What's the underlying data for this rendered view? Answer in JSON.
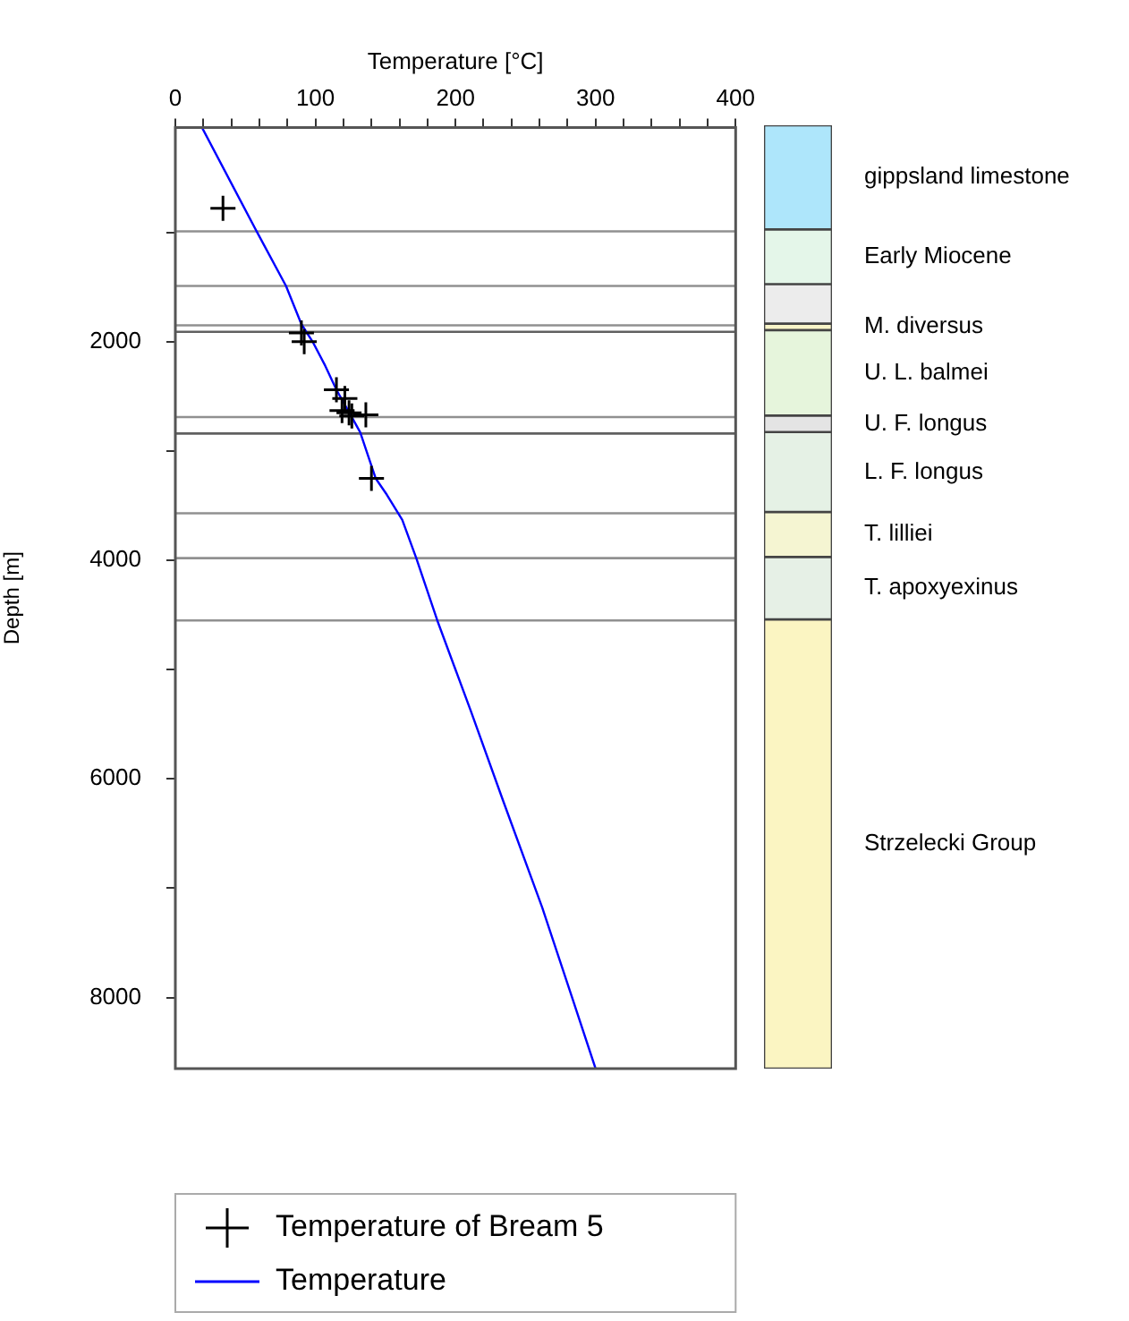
{
  "chart_data": [
    {
      "type": "line",
      "xlabel": "Temperature [°C]",
      "ylabel": "Depth [m]",
      "xlim": [
        0,
        400
      ],
      "ylim": [
        8650,
        40
      ],
      "xticks": [
        0,
        {
          "value": 20,
          "label": null
        },
        {
          "value": 40,
          "label": null
        },
        {
          "value": 60,
          "label": null
        },
        {
          "value": 80,
          "label": null
        },
        100,
        {
          "value": 120,
          "label": null
        },
        {
          "value": 140,
          "label": null
        },
        {
          "value": 160,
          "label": null
        },
        {
          "value": 180,
          "label": null
        },
        200,
        {
          "value": 220,
          "label": null
        },
        {
          "value": 240,
          "label": null
        },
        {
          "value": 260,
          "label": null
        },
        {
          "value": 280,
          "label": null
        },
        300,
        {
          "value": 320,
          "label": null
        },
        {
          "value": 340,
          "label": null
        },
        {
          "value": 360,
          "label": null
        },
        {
          "value": 380,
          "label": null
        },
        400
      ],
      "yticks": [
        {
          "value": 1000,
          "label": null
        },
        2000,
        {
          "value": 3000,
          "label": null
        },
        4000,
        {
          "value": 5000,
          "label": null
        },
        6000,
        {
          "value": 7000,
          "label": null
        },
        8000
      ],
      "legend": "bottom",
      "series": [
        {
          "name": "Temperature of Bream 5",
          "type": "scatter",
          "marker": "cross",
          "color": "#000000",
          "x": [
            34,
            90,
            92,
            115,
            121,
            119,
            124,
            126,
            136,
            140
          ],
          "values": [
            780,
            1920,
            2000,
            2440,
            2520,
            2630,
            2650,
            2680,
            2670,
            3250
          ]
        },
        {
          "name": "Temperature",
          "marker": "none",
          "color": "#0000ff",
          "x": [
            19,
            58,
            79,
            90,
            98,
            107,
            115,
            126,
            132,
            143,
            151,
            162,
            172,
            187,
            211,
            234,
            262,
            283,
            300
          ],
          "values": [
            40,
            990,
            1490,
            1840,
            2000,
            2220,
            2440,
            2690,
            2830,
            3250,
            3400,
            3630,
            3980,
            4550,
            5380,
            6200,
            7180,
            7990,
            8650
          ]
        }
      ],
      "ref_lines": [
        {
          "axis": "y",
          "value": 990,
          "color": "#909090"
        },
        {
          "axis": "y",
          "value": 1490,
          "color": "#909090"
        },
        {
          "axis": "y",
          "value": 1850,
          "color": "#909090"
        },
        {
          "axis": "y",
          "value": 1910,
          "color": "#606060"
        },
        {
          "axis": "y",
          "value": 2690,
          "color": "#909090"
        },
        {
          "axis": "y",
          "value": 2840,
          "color": "#606060"
        },
        {
          "axis": "y",
          "value": 3570,
          "color": "#909090"
        },
        {
          "axis": "y",
          "value": 3980,
          "color": "#909090"
        },
        {
          "axis": "y",
          "value": 4550,
          "color": "#909090"
        }
      ]
    },
    {
      "type": "bar",
      "categories": [
        null
      ],
      "ylim": [
        8650,
        40
      ],
      "tick_labels": false,
      "series": [
        {
          "name": "gippsland limestone",
          "color": "#aee6fb",
          "base": [
            40
          ],
          "values": [
            950
          ]
        },
        {
          "name": "Early Miocene",
          "color": "#e4f6e9",
          "base": [
            990
          ],
          "values": [
            500
          ]
        },
        {
          "color": "#ececec",
          "base": [
            1490
          ],
          "values": [
            360
          ]
        },
        {
          "name": "M. diversus",
          "color": "#f8f4c8",
          "base": [
            1850
          ],
          "values": [
            60
          ]
        },
        {
          "name": "U. L. balmei",
          "color": "#e6f5dc",
          "base": [
            1910
          ],
          "values": [
            780
          ]
        },
        {
          "name": "U. F. longus",
          "color": "#e4e4e4",
          "base": [
            2690
          ],
          "values": [
            150
          ]
        },
        {
          "name": "L. F. longus",
          "color": "#e5f1e5",
          "base": [
            2840
          ],
          "values": [
            730
          ]
        },
        {
          "name": "T. lilliei",
          "color": "#f5f5d2",
          "base": [
            3570
          ],
          "values": [
            410
          ]
        },
        {
          "name": "T. apoxyexinus",
          "color": "#e6f0e6",
          "base": [
            3980
          ],
          "values": [
            570
          ]
        },
        {
          "name": "Strzelecki Group",
          "color": "#fbf5c2",
          "base": [
            4550
          ],
          "values": [
            4100
          ]
        }
      ]
    }
  ]
}
